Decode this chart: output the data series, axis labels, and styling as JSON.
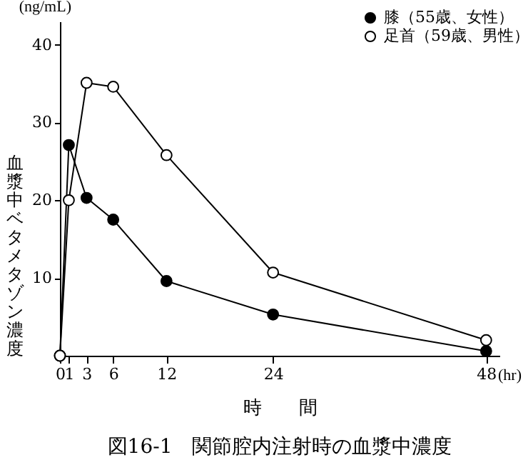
{
  "chart_data": {
    "type": "line",
    "title": "図16-1　関節腔内注射時の血漿中濃度",
    "xlabel": "時　　間",
    "ylabel": "血漿中ベタメタゾン濃度",
    "x": [
      0,
      1,
      3,
      6,
      12,
      24,
      48
    ],
    "series": [
      {
        "name": "膝（55歳、女性）",
        "color": "#000000",
        "values": [
          0,
          27.1,
          20.3,
          17.5,
          9.6,
          5.3,
          0.6
        ]
      },
      {
        "name": "足首（59歳、男性）",
        "color": "#000000",
        "values": [
          0,
          20,
          35.1,
          34.6,
          25.8,
          10.7,
          2
        ]
      }
    ],
    "xlim": [
      0,
      49.5
    ],
    "ylim": [
      0,
      43
    ],
    "xticks": [
      0,
      1,
      3,
      6,
      12,
      24,
      48
    ],
    "yticks": [
      10,
      20,
      30,
      40
    ],
    "annotations": [
      "(ng/mL)",
      "(hr)"
    ],
    "marker": "circle",
    "line_style": "solid",
    "legend": "top right",
    "grid": false
  }
}
